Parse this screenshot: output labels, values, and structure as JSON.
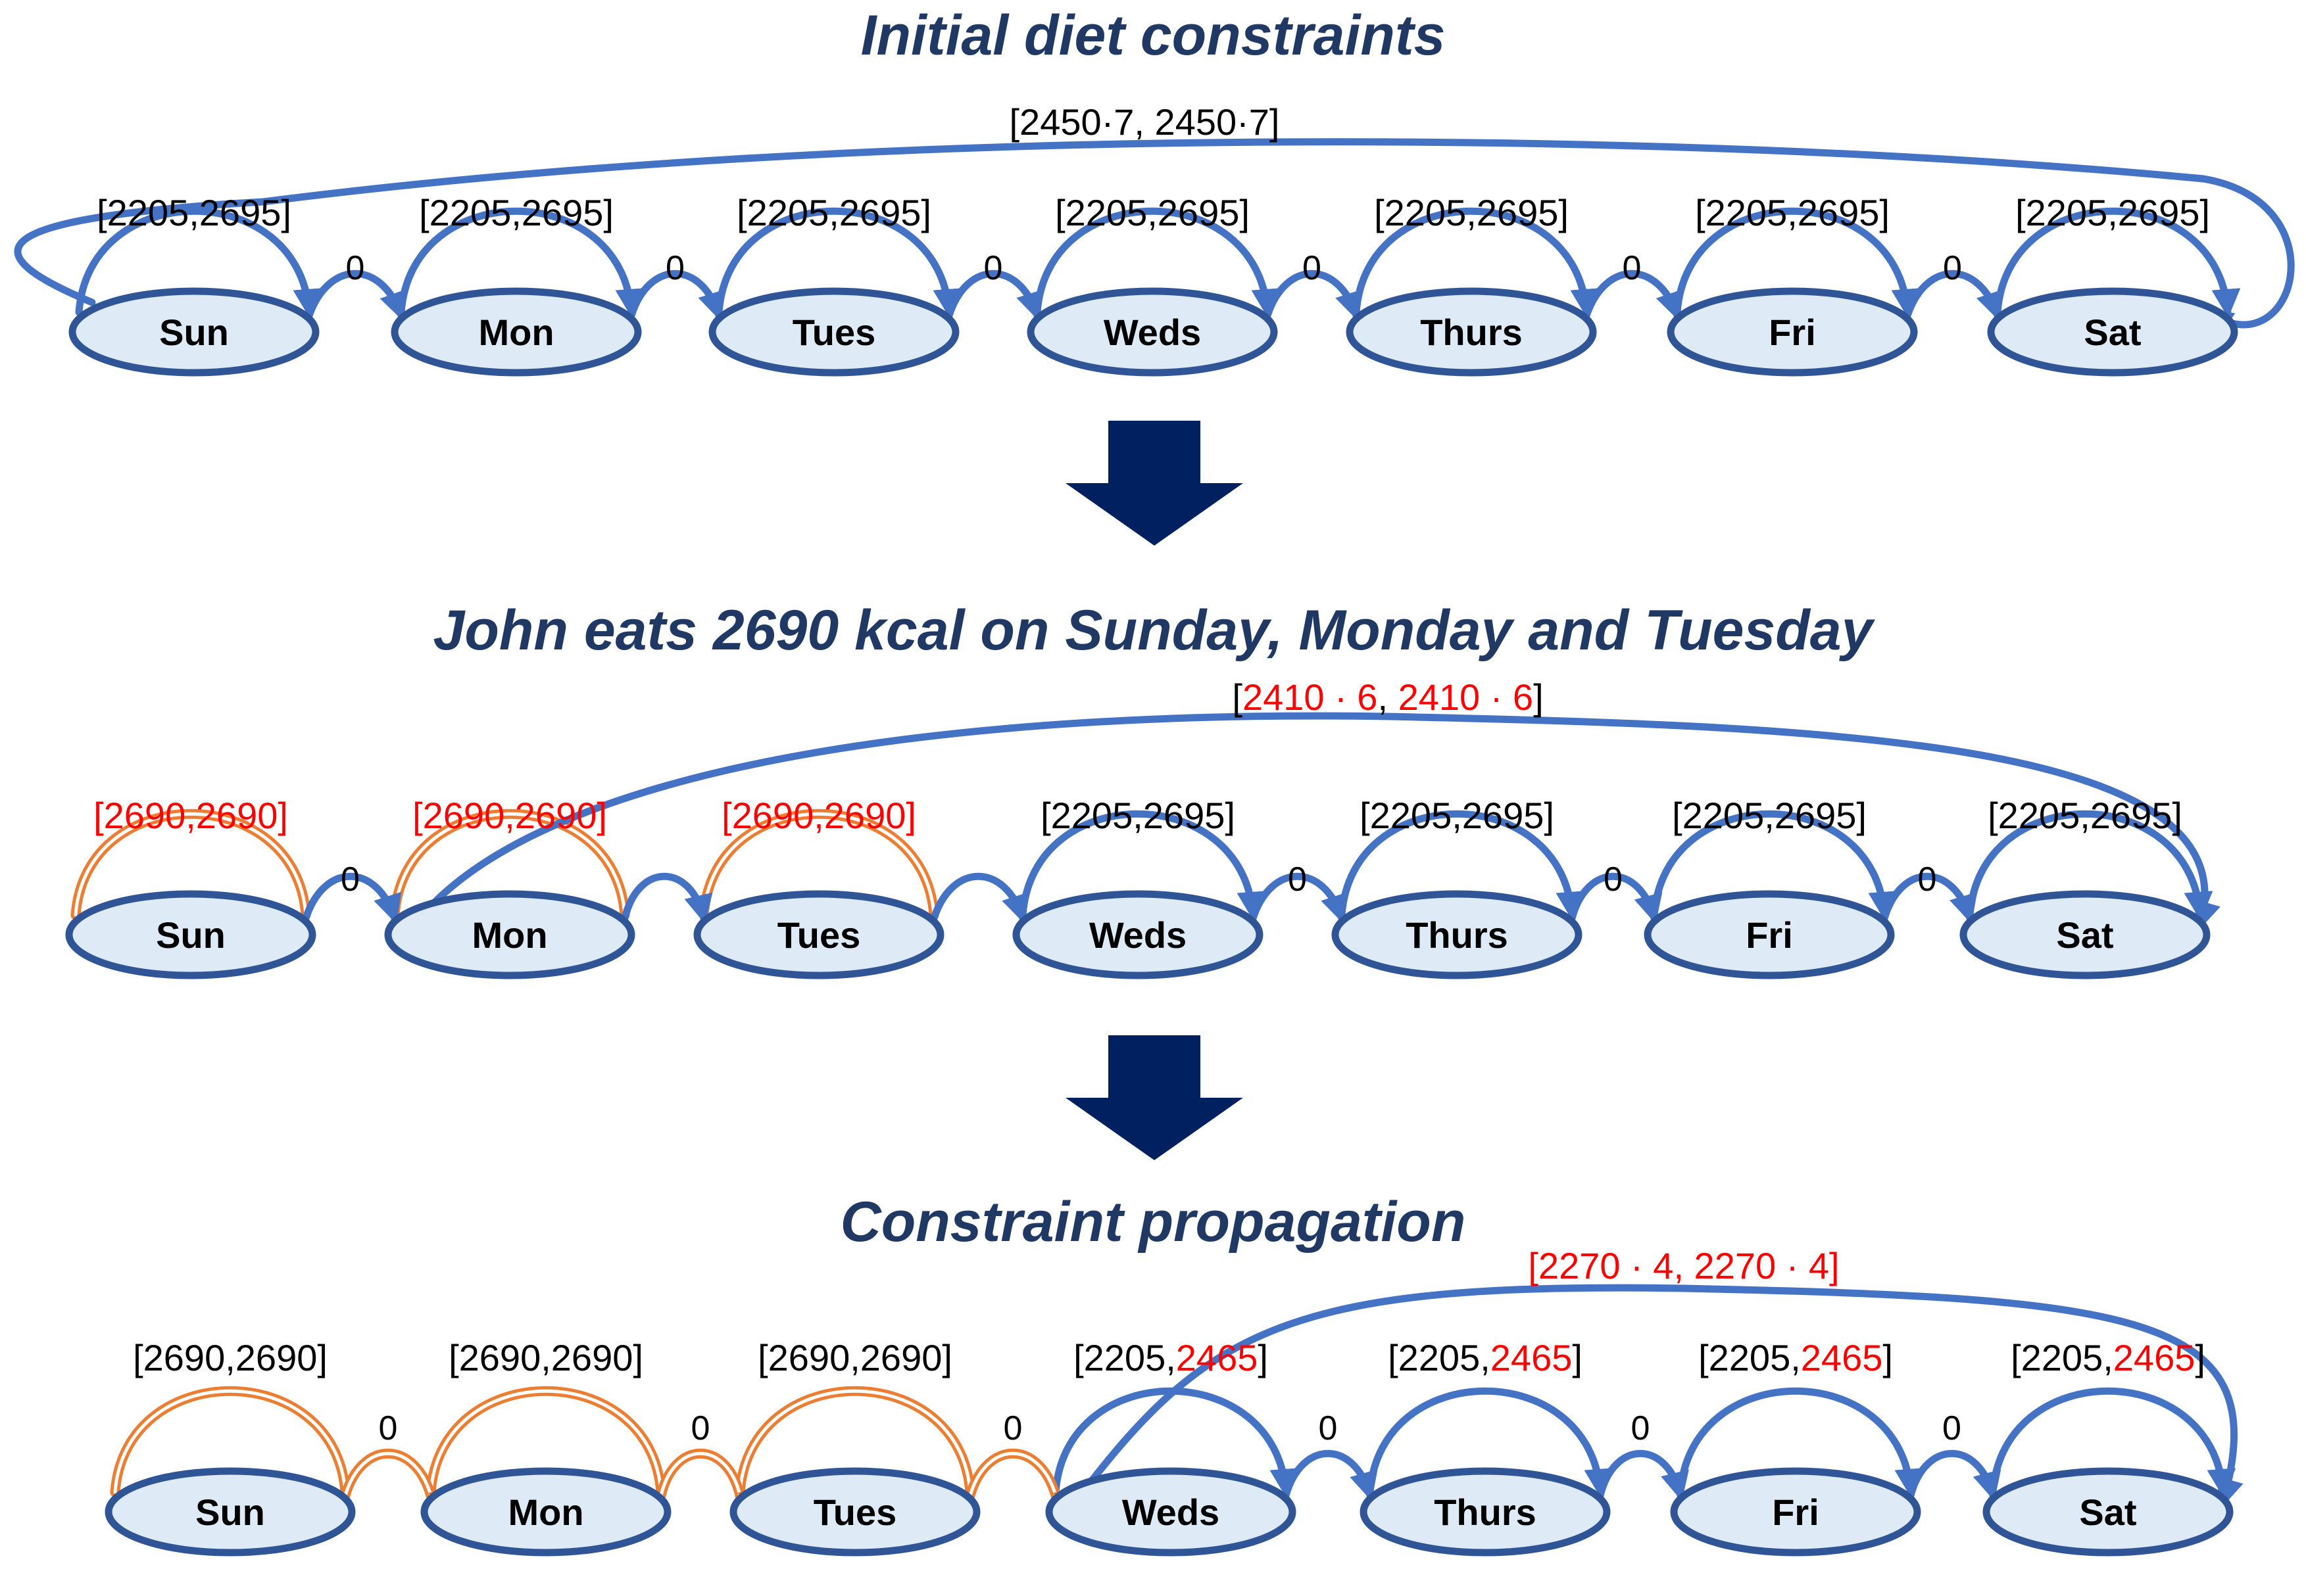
{
  "colors": {
    "title": "#1f3864",
    "node_fill": "#deebf7",
    "node_stroke": "#2f5597",
    "arc_blue": "#4472c4",
    "arc_orange": "#ed7d31",
    "arrow_navy": "#002060",
    "highlight": "#ff0000"
  },
  "panels": [
    {
      "title": "Initial diet constraints",
      "weekly": {
        "parts": [
          {
            "text": "[2450·7, 2450·7]",
            "red": false
          }
        ]
      },
      "days": [
        {
          "name": "Sun",
          "parts": [
            {
              "text": "[2205,2695]",
              "red": false
            }
          ],
          "orange": false
        },
        {
          "name": "Mon",
          "parts": [
            {
              "text": "[2205,2695]",
              "red": false
            }
          ],
          "orange": false
        },
        {
          "name": "Tues",
          "parts": [
            {
              "text": "[2205,2695]",
              "red": false
            }
          ],
          "orange": false
        },
        {
          "name": "Weds",
          "parts": [
            {
              "text": "[2205,2695]",
              "red": false
            }
          ],
          "orange": false
        },
        {
          "name": "Thurs",
          "parts": [
            {
              "text": "[2205,2695]",
              "red": false
            }
          ],
          "orange": false
        },
        {
          "name": "Fri",
          "parts": [
            {
              "text": "[2205,2695]",
              "red": false
            }
          ],
          "orange": false
        },
        {
          "name": "Sat",
          "parts": [
            {
              "text": "[2205,2695]",
              "red": false
            }
          ],
          "orange": false
        }
      ],
      "links": [
        {
          "label": "0",
          "orange": false
        },
        {
          "label": "0",
          "orange": false
        },
        {
          "label": "0",
          "orange": false
        },
        {
          "label": "0",
          "orange": false
        },
        {
          "label": "0",
          "orange": false
        },
        {
          "label": "0",
          "orange": false
        }
      ],
      "weekly_from": 0
    },
    {
      "title": "John eats 2690 kcal on Sunday, Monday and Tuesday",
      "weekly": {
        "parts": [
          {
            "text": "[",
            "red": false
          },
          {
            "text": "2410 · 6",
            "red": true
          },
          {
            "text": ", ",
            "red": false
          },
          {
            "text": "2410 · 6",
            "red": true
          },
          {
            "text": "]",
            "red": false
          }
        ]
      },
      "days": [
        {
          "name": "Sun",
          "parts": [
            {
              "text": "[2690,2690]",
              "red": true
            }
          ],
          "orange": true
        },
        {
          "name": "Mon",
          "parts": [
            {
              "text": "[2690,2690]",
              "red": true
            }
          ],
          "orange": true
        },
        {
          "name": "Tues",
          "parts": [
            {
              "text": "[2690,2690]",
              "red": true
            }
          ],
          "orange": true
        },
        {
          "name": "Weds",
          "parts": [
            {
              "text": "[2205,2695]",
              "red": false
            }
          ],
          "orange": false
        },
        {
          "name": "Thurs",
          "parts": [
            {
              "text": "[2205,2695]",
              "red": false
            }
          ],
          "orange": false
        },
        {
          "name": "Fri",
          "parts": [
            {
              "text": "[2205,2695]",
              "red": false
            }
          ],
          "orange": false
        },
        {
          "name": "Sat",
          "parts": [
            {
              "text": "[2205,2695]",
              "red": false
            }
          ],
          "orange": false
        }
      ],
      "links": [
        {
          "label": "0",
          "orange": false
        },
        {
          "label": "",
          "orange": false
        },
        {
          "label": "",
          "orange": false
        },
        {
          "label": "0",
          "orange": false
        },
        {
          "label": "0",
          "orange": false
        },
        {
          "label": "0",
          "orange": false
        }
      ],
      "weekly_from": 1
    },
    {
      "title": "Constraint propagation",
      "weekly": {
        "parts": [
          {
            "text": "[2270 · 4, 2270 · 4]",
            "red": true
          }
        ]
      },
      "days": [
        {
          "name": "Sun",
          "parts": [
            {
              "text": "[2690,2690]",
              "red": false
            }
          ],
          "orange": true
        },
        {
          "name": "Mon",
          "parts": [
            {
              "text": "[2690,2690]",
              "red": false
            }
          ],
          "orange": true
        },
        {
          "name": "Tues",
          "parts": [
            {
              "text": "[2690,2690]",
              "red": false
            }
          ],
          "orange": true
        },
        {
          "name": "Weds",
          "parts": [
            {
              "text": "[2205,",
              "red": false
            },
            {
              "text": "2465",
              "red": true
            },
            {
              "text": "]",
              "red": false
            }
          ],
          "orange": false
        },
        {
          "name": "Thurs",
          "parts": [
            {
              "text": "[2205,",
              "red": false
            },
            {
              "text": "2465",
              "red": true
            },
            {
              "text": "]",
              "red": false
            }
          ],
          "orange": false
        },
        {
          "name": "Fri",
          "parts": [
            {
              "text": "[2205,",
              "red": false
            },
            {
              "text": "2465",
              "red": true
            },
            {
              "text": "]",
              "red": false
            }
          ],
          "orange": false
        },
        {
          "name": "Sat",
          "parts": [
            {
              "text": "[2205,",
              "red": false
            },
            {
              "text": "2465",
              "red": true
            },
            {
              "text": "]",
              "red": false
            }
          ],
          "orange": false
        }
      ],
      "links": [
        {
          "label": "0",
          "orange": true
        },
        {
          "label": "0",
          "orange": true
        },
        {
          "label": "0",
          "orange": true
        },
        {
          "label": "0",
          "orange": false
        },
        {
          "label": "0",
          "orange": false
        },
        {
          "label": "0",
          "orange": false
        }
      ],
      "weekly_from": 3
    }
  ]
}
